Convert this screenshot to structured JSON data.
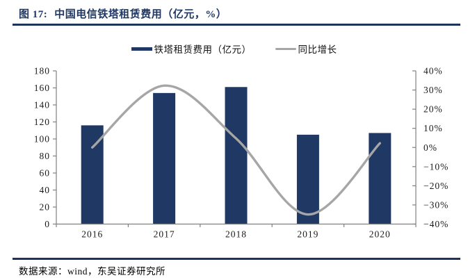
{
  "header": {
    "figure_label": "图 17:",
    "title": "中国电信铁塔租赁费用（亿元，%）"
  },
  "legend": {
    "items": [
      {
        "label": "铁塔租赁费用（亿元）",
        "type": "bar",
        "color": "#1F3864"
      },
      {
        "label": "同比增长",
        "type": "line",
        "color": "#A6A6A6"
      }
    ]
  },
  "chart_data": {
    "type": "bar+line",
    "title": "中国电信铁塔租赁费用（亿元，%）",
    "categories": [
      "2016",
      "2017",
      "2018",
      "2019",
      "2020"
    ],
    "series": [
      {
        "name": "铁塔租赁费用（亿元）",
        "type": "bar",
        "axis": "left",
        "color": "#1F3864",
        "values": [
          116,
          154,
          161,
          105,
          107
        ]
      },
      {
        "name": "同比增长",
        "type": "line",
        "axis": "right",
        "color": "#A6A6A6",
        "values_percent": [
          0.0,
          32.3,
          4.7,
          -35.0,
          2.2
        ]
      }
    ],
    "left_axis": {
      "min": 0,
      "max": 180,
      "ticks": [
        0,
        20,
        40,
        60,
        80,
        100,
        120,
        140,
        160,
        180
      ]
    },
    "right_axis": {
      "min": -40,
      "max": 40,
      "ticks": [
        -40,
        -30,
        -20,
        -10,
        0,
        10,
        20,
        30,
        40
      ],
      "format": "percent"
    },
    "grid": false,
    "legend_position": "top",
    "axis_color": "#808080",
    "tick_label_color": "#1a1a1a"
  },
  "footer": {
    "source": "数据来源：wind，东吴证券研究所"
  }
}
